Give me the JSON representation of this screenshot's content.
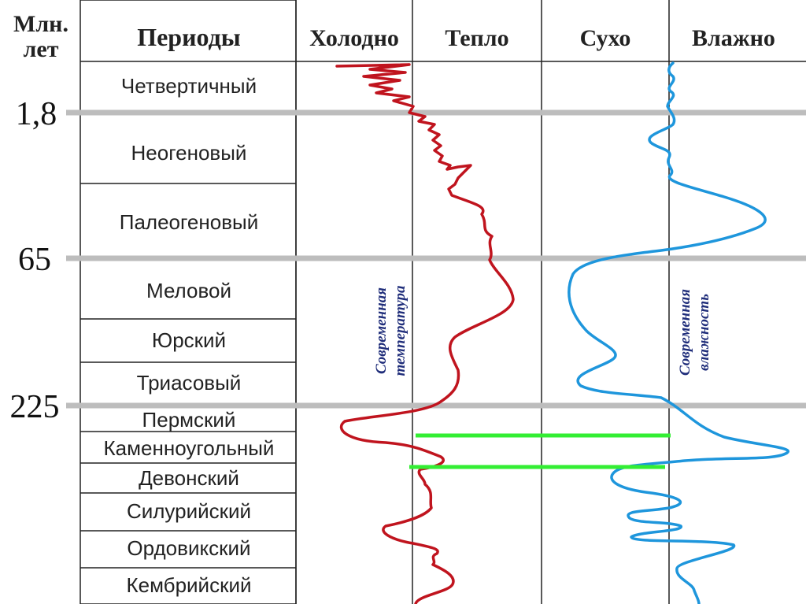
{
  "header": {
    "years_line1": "Млн.",
    "years_line2": "лет",
    "periods": "Периоды",
    "cold": "Холодно",
    "warm": "Тепло",
    "dry": "Сухо",
    "wet": "Влажно"
  },
  "axis_ticks": [
    "1,8",
    "65",
    "225"
  ],
  "periods": [
    "Четвертичный",
    "Неогеновый",
    "Палеогеновый",
    "Меловой",
    "Юрский",
    "Триасовый",
    "Пермский",
    "Каменноугольный",
    "Девонский",
    "Силурийский",
    "Ордовикский",
    "Кембрийский"
  ],
  "temperature_note": {
    "line1": "Современная",
    "line2": "температура"
  },
  "humidity_note": {
    "line1": "Современная",
    "line2": "влажность"
  },
  "colors": {
    "temperature_curve": "#c0141e",
    "humidity_curve": "#1e96dc",
    "boundary_lines": "#bdbdbd",
    "marker_lines": "#33ee33",
    "text_vertical": "#1f2d7a"
  }
}
